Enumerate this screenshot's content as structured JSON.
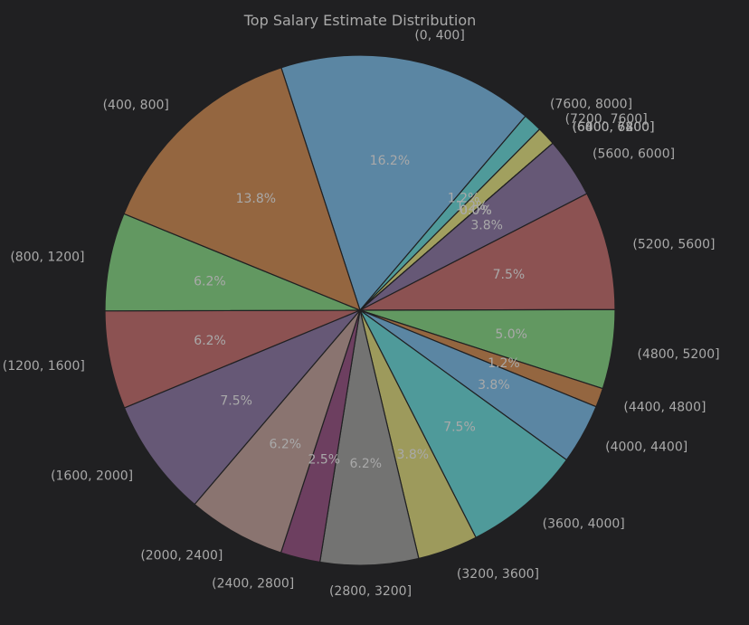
{
  "chart_data": {
    "type": "pie",
    "title": "Top Salary Estimate Distribution",
    "start": "clockwise from top, starting at (0, 400)",
    "slices": [
      {
        "label": "(0, 400]",
        "value": 16.2,
        "pct_label": "16.2%",
        "color": "#5b86a3"
      },
      {
        "label": "(7600, 8000]",
        "value": 1.2,
        "pct_label": "1.2%",
        "color": "#4f9a9a"
      },
      {
        "label": "(7200, 7600]",
        "value": 1.2,
        "pct_label": "1.2%",
        "color": "#a1a05f"
      },
      {
        "label": "(6800, 7200]",
        "value": 0.0,
        "pct_label": "0.0%",
        "color": "#8b6a9a"
      },
      {
        "label": "(6400, 6800]",
        "value": 0.0,
        "pct_label": "0.0%",
        "color": "#73726f"
      },
      {
        "label": "(6000, 6400]",
        "value": 0.0,
        "pct_label": "0.0%",
        "color": "#8a7069"
      },
      {
        "label": "(5600, 6000]",
        "value": 3.8,
        "pct_label": "3.8%",
        "color": "#665876"
      },
      {
        "label": "(5200, 5600]",
        "value": 7.5,
        "pct_label": "7.5%",
        "color": "#8c5252"
      },
      {
        "label": "(4800, 5200]",
        "value": 5.0,
        "pct_label": "5.0%",
        "color": "#629861"
      },
      {
        "label": "(4400, 4800]",
        "value": 1.2,
        "pct_label": "1.2%",
        "color": "#946640"
      },
      {
        "label": "(4000, 4400]",
        "value": 3.8,
        "pct_label": "3.8%",
        "color": "#5b86a3"
      },
      {
        "label": "(3600, 4000]",
        "value": 7.5,
        "pct_label": "7.5%",
        "color": "#4f9a9a"
      },
      {
        "label": "(3200, 3600]",
        "value": 3.8,
        "pct_label": "3.8%",
        "color": "#9d9a5c"
      },
      {
        "label": "(2800, 3200]",
        "value": 6.2,
        "pct_label": "6.2%",
        "color": "#737372"
      },
      {
        "label": "(2400, 2800]",
        "value": 2.5,
        "pct_label": "2.5%",
        "color": "#6d3f60"
      },
      {
        "label": "(2000, 2400]",
        "value": 6.2,
        "pct_label": "6.2%",
        "color": "#8a7470"
      },
      {
        "label": "(1600, 2000]",
        "value": 7.5,
        "pct_label": "7.5%",
        "color": "#665876"
      },
      {
        "label": "(1200, 1600]",
        "value": 6.2,
        "pct_label": "6.2%",
        "color": "#8c5252"
      },
      {
        "label": "(800, 1200]",
        "value": 6.2,
        "pct_label": "6.2%",
        "color": "#629861"
      },
      {
        "label": "(400, 800]",
        "value": 13.8,
        "pct_label": "13.8%",
        "color": "#946640"
      }
    ],
    "outline_color": "#202022",
    "text_color": "#a9a9a9"
  }
}
